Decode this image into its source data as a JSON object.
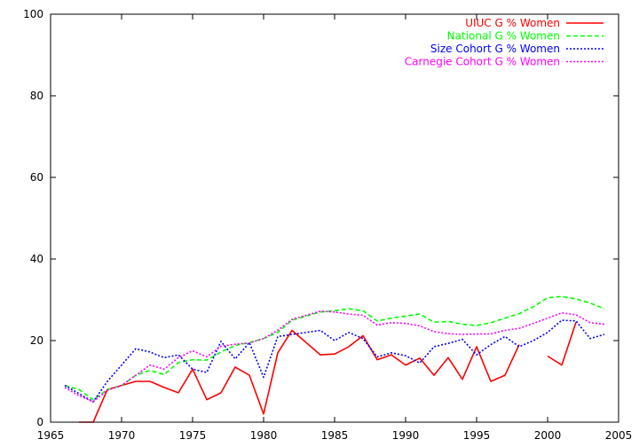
{
  "chart_data": {
    "type": "line",
    "title": "",
    "xlabel": "",
    "ylabel": "",
    "xlim": [
      1965,
      2005
    ],
    "ylim": [
      0,
      100
    ],
    "x_ticks": [
      1965,
      1970,
      1975,
      1980,
      1985,
      1990,
      1995,
      2000,
      2005
    ],
    "y_ticks": [
      0,
      20,
      40,
      60,
      80,
      100
    ],
    "grid": false,
    "legend_position": "top-right",
    "x": [
      1966,
      1967,
      1968,
      1969,
      1970,
      1971,
      1972,
      1973,
      1974,
      1975,
      1976,
      1977,
      1978,
      1979,
      1980,
      1981,
      1982,
      1983,
      1984,
      1985,
      1986,
      1987,
      1988,
      1989,
      1990,
      1991,
      1992,
      1993,
      1994,
      1995,
      1996,
      1997,
      1998,
      1999,
      2000,
      2001,
      2002,
      2003,
      2004
    ],
    "series": [
      {
        "name": "UIUC G % Women",
        "color": "#ff0000",
        "dash": "solid",
        "values": [
          null,
          0,
          0,
          8,
          9,
          10,
          10,
          8.5,
          7.2,
          13,
          5.5,
          7.2,
          13.5,
          11.5,
          2,
          17,
          22.5,
          19.5,
          16.5,
          16.7,
          18.5,
          21.2,
          15.3,
          16.5,
          14,
          15.7,
          11.5,
          15.8,
          10.5,
          18.5,
          10,
          11.5,
          19,
          null,
          16.2,
          14,
          24.5,
          null,
          null
        ]
      },
      {
        "name": "National G % Women",
        "color": "#00ff00",
        "dash": "dashed",
        "values": [
          9,
          8,
          5.5,
          8,
          9,
          11.5,
          12.7,
          11.7,
          14.6,
          15.3,
          15.2,
          17.2,
          18.8,
          19.5,
          20.5,
          22,
          25,
          26,
          27,
          27.3,
          27.8,
          27.3,
          24.8,
          25.5,
          26,
          26.5,
          24.5,
          24.7,
          24,
          23.7,
          24.4,
          25.5,
          26.6,
          28.3,
          30.5,
          30.8,
          30.2,
          29.2,
          27.8
        ]
      },
      {
        "name": "Size Cohort G % Women",
        "color": "#0000ff",
        "dash": "dotted",
        "values": [
          9,
          7,
          5,
          10,
          14,
          18,
          17.2,
          15.8,
          16.5,
          13,
          12.2,
          19.8,
          15.5,
          19.5,
          11,
          21,
          21.5,
          22,
          22.5,
          20,
          22,
          20.5,
          16,
          17,
          16.3,
          14.5,
          18.5,
          19.3,
          20.3,
          16.5,
          19,
          21,
          18.5,
          20,
          22,
          25,
          24.8,
          20.5,
          21.5
        ]
      },
      {
        "name": "Carnegie Cohort G % Women",
        "color": "#ff00ff",
        "dash": "dotted",
        "values": [
          8.5,
          6.5,
          5,
          7.8,
          9,
          11.5,
          14,
          13,
          15.8,
          17.5,
          16,
          18.6,
          19.1,
          19.4,
          20.5,
          22.5,
          25.2,
          26.2,
          27.2,
          27,
          26.5,
          26.2,
          23.8,
          24.4,
          24.2,
          23.6,
          22.2,
          21.7,
          21.5,
          21.6,
          21.6,
          22.5,
          23,
          24.2,
          25.5,
          26.8,
          26.3,
          24.4,
          24
        ]
      }
    ]
  }
}
